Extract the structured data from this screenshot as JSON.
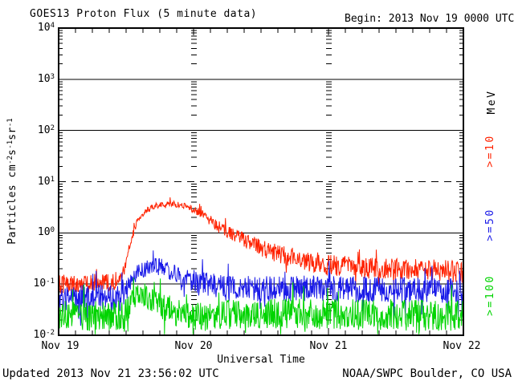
{
  "header": {
    "title": "GOES13 Proton Flux (5 minute data)",
    "begin_label": "Begin: 2013 Nov 19 0000 UTC"
  },
  "footer": {
    "updated": "Updated 2013 Nov 21 23:56:02 UTC",
    "source": "NOAA/SWPC Boulder, CO USA"
  },
  "y_axis": {
    "title_parts": [
      {
        "text": "Particles cm"
      },
      {
        "sup": "-2"
      },
      {
        "text": "s"
      },
      {
        "sup": "-1"
      },
      {
        "text": "sr"
      },
      {
        "sup": "-1"
      }
    ],
    "ticks": [
      {
        "base": "10",
        "exp": "4"
      },
      {
        "base": "10",
        "exp": "3"
      },
      {
        "base": "10",
        "exp": "2"
      },
      {
        "base": "10",
        "exp": "1"
      },
      {
        "base": "10",
        "exp": "0"
      },
      {
        "base": "10",
        "exp": "-1"
      },
      {
        "base": "10",
        "exp": "-2"
      }
    ]
  },
  "x_axis": {
    "title": "Universal Time",
    "tick_labels": [
      "Nov 19",
      "Nov 20",
      "Nov 21",
      "Nov 22"
    ]
  },
  "right_labels": {
    "unit": "MeV",
    "unit_color": "#000000"
  },
  "chart_data": {
    "type": "line",
    "title": "GOES13 Proton Flux (5 minute data)",
    "xlabel": "Universal Time",
    "ylabel": "Particles cm-2 s-1 sr-1",
    "x_start": "2013 Nov 19 0000 UTC",
    "x_range_hours": [
      0,
      72
    ],
    "x_day_labels": [
      "Nov 19",
      "Nov 20",
      "Nov 21",
      "Nov 22"
    ],
    "y_log10_range": [
      -2,
      4
    ],
    "y_decades": [
      4,
      3,
      2,
      1,
      0,
      -1,
      -2
    ],
    "solid_gridline_decades": [
      3,
      2,
      0,
      -1
    ],
    "dashed_gridline_decades": [
      1
    ],
    "day_gridline_hours": [
      24,
      48
    ],
    "minor_tick_interval_hours": 3,
    "samples_per_hour": 12,
    "spike_probability": 0.05,
    "legend_position": "right",
    "series": [
      {
        "name": ">=10 MeV proton flux",
        "threshold_label": ">=10",
        "color": "#ff2200",
        "anchor_hours": [
          0,
          9,
          11,
          12,
          12.6,
          13.3,
          14,
          15.5,
          17,
          19,
          21,
          23,
          25,
          27,
          29,
          31,
          33,
          36,
          40,
          44,
          48,
          54,
          60,
          66,
          72
        ],
        "anchor_log10_flux": [
          -1.0,
          -0.97,
          -0.9,
          -0.62,
          -0.25,
          0.0,
          0.25,
          0.42,
          0.52,
          0.58,
          0.56,
          0.5,
          0.4,
          0.24,
          0.08,
          -0.04,
          -0.14,
          -0.3,
          -0.44,
          -0.54,
          -0.62,
          -0.68,
          -0.7,
          -0.72,
          -0.78
        ],
        "noise_hours": [
          0,
          10,
          12.5,
          14,
          22,
          26,
          30,
          36,
          44,
          72
        ],
        "noise_log10_amp": [
          0.18,
          0.18,
          0.1,
          0.06,
          0.06,
          0.09,
          0.13,
          0.17,
          0.2,
          0.22
        ]
      },
      {
        "name": ">=50 MeV proton flux",
        "threshold_label": ">=50",
        "color": "#1a1ae8",
        "anchor_hours": [
          0,
          11.5,
          12.5,
          14,
          16,
          18,
          20,
          23,
          26,
          30,
          36,
          44,
          52,
          60,
          72
        ],
        "anchor_log10_flux": [
          -1.27,
          -1.27,
          -1.05,
          -0.78,
          -0.66,
          -0.66,
          -0.76,
          -0.9,
          -1.0,
          -1.08,
          -1.1,
          -1.08,
          -1.1,
          -1.12,
          -1.14
        ],
        "noise_hours": [
          0,
          11.5,
          13,
          19,
          24,
          30,
          72
        ],
        "noise_log10_amp": [
          0.26,
          0.26,
          0.16,
          0.17,
          0.22,
          0.25,
          0.26
        ]
      },
      {
        "name": ">=100 MeV proton flux",
        "threshold_label": ">=100",
        "color": "#00d400",
        "anchor_hours": [
          0,
          11.8,
          13,
          14.5,
          16,
          18,
          21,
          25,
          32,
          40,
          55,
          72
        ],
        "anchor_log10_flux": [
          -1.62,
          -1.62,
          -1.32,
          -1.17,
          -1.26,
          -1.42,
          -1.55,
          -1.62,
          -1.6,
          -1.58,
          -1.6,
          -1.62
        ],
        "noise_hours": [
          0,
          12,
          14,
          18,
          24,
          72
        ],
        "noise_log10_amp": [
          0.3,
          0.3,
          0.22,
          0.26,
          0.3,
          0.3
        ]
      }
    ]
  }
}
